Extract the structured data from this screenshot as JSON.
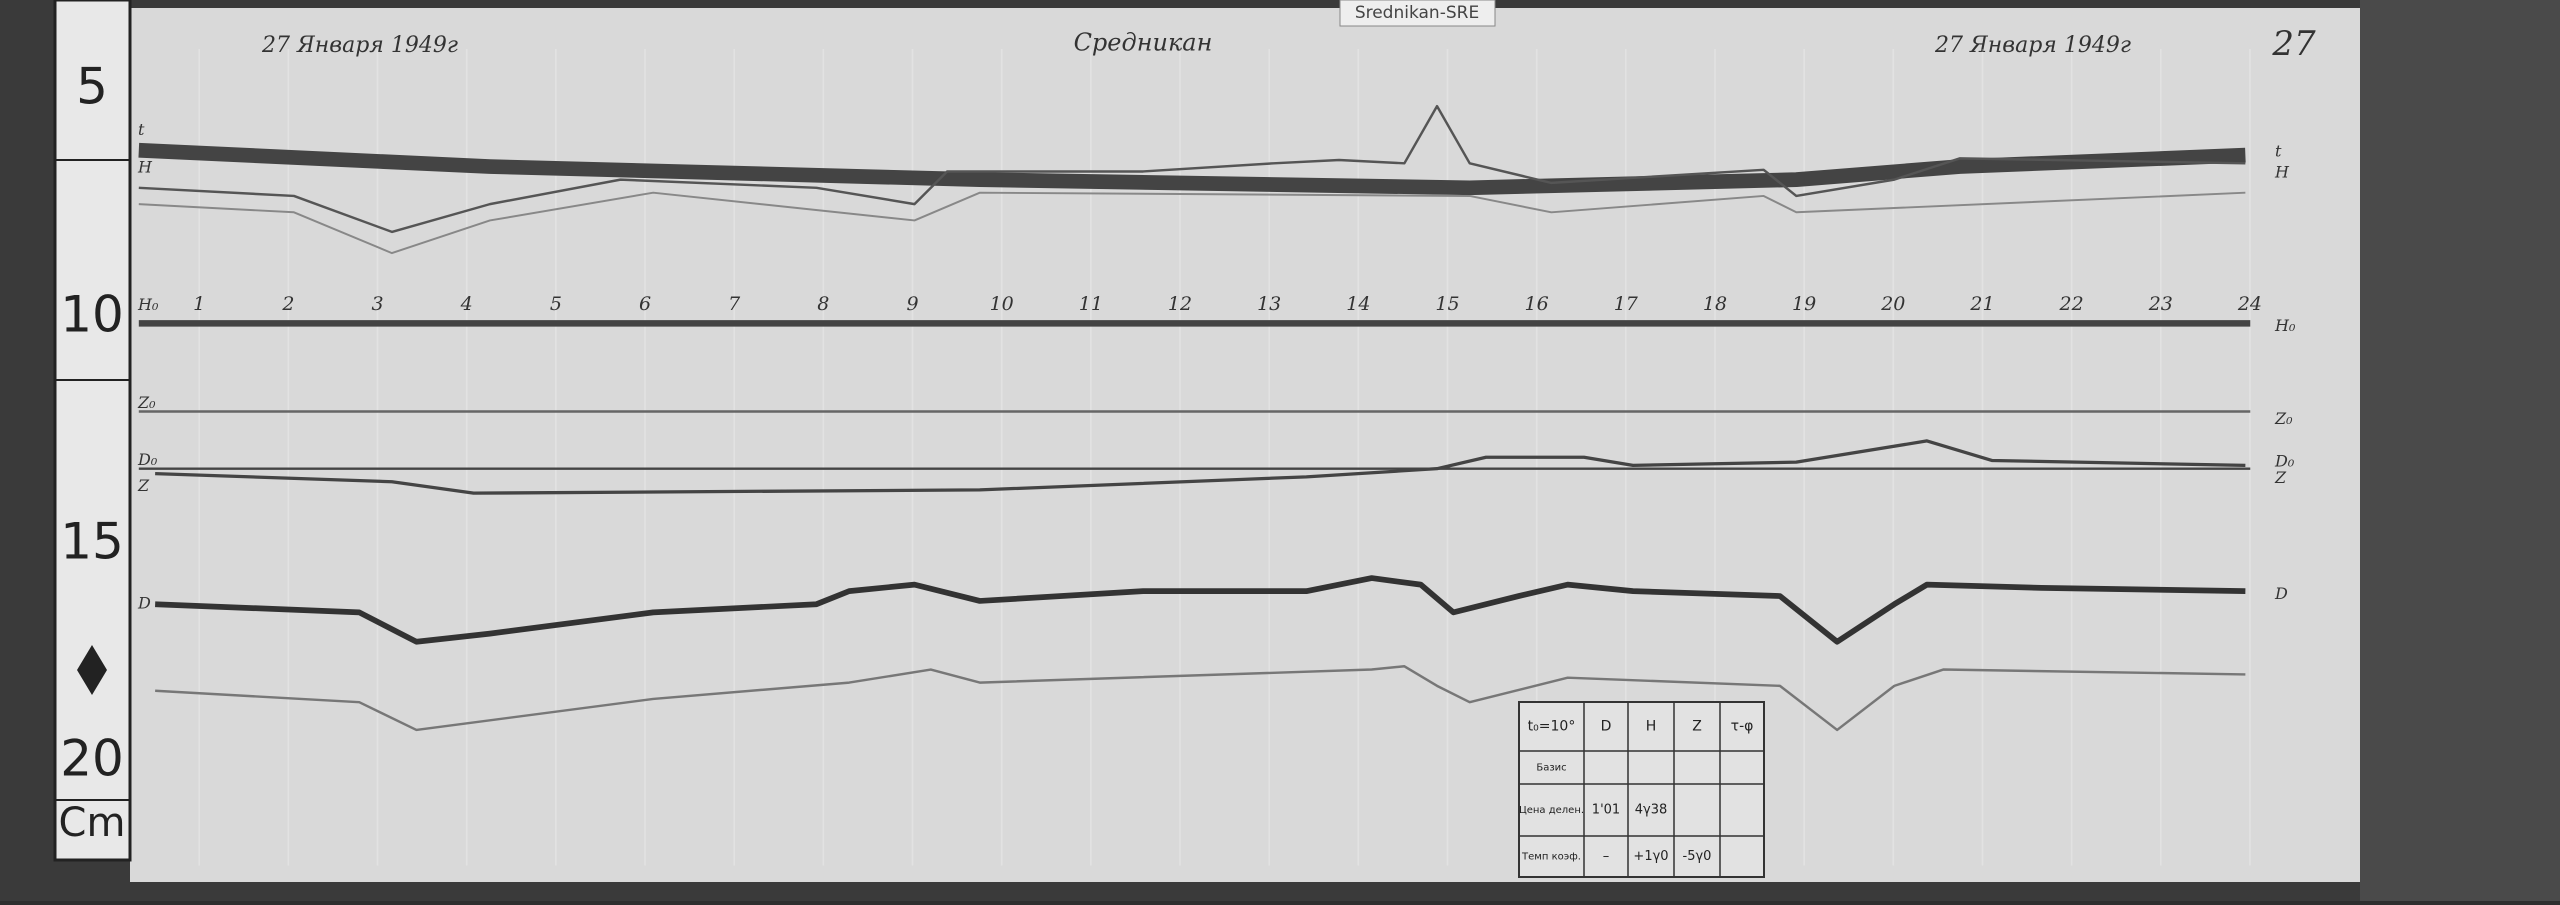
{
  "source_label": "Srednikan-SRE",
  "header": {
    "date_left": "27 Января 1949г",
    "station": "Средникан",
    "date_right": "27 Января 1949г",
    "page_number": "27"
  },
  "ruler": {
    "labels": [
      "5",
      "10",
      "15",
      "20"
    ],
    "unit": "Cm"
  },
  "hours": [
    "1",
    "2",
    "3",
    "4",
    "5",
    "6",
    "7",
    "8",
    "9",
    "10",
    "11",
    "12",
    "13",
    "14",
    "15",
    "16",
    "17",
    "18",
    "19",
    "20",
    "21",
    "22",
    "23",
    "24"
  ],
  "trace_labels": {
    "left": [
      "t",
      "H",
      "H₀",
      "Z₀",
      "D₀",
      "Z",
      "D"
    ],
    "right": [
      "t",
      "H",
      "H₀",
      "Z₀",
      "D₀",
      "Z",
      "D"
    ]
  },
  "table": {
    "header": [
      "t₀=10°",
      "D",
      "H",
      "Z",
      "τ-φ"
    ],
    "rows": [
      {
        "label": "Базис"
      },
      {
        "label": "Цена делен.",
        "D": "1'01",
        "H": "4γ38"
      },
      {
        "label": "Темп коэф.",
        "D": "–",
        "H": "+1γ0",
        "Z": "-5γ0"
      }
    ]
  }
}
